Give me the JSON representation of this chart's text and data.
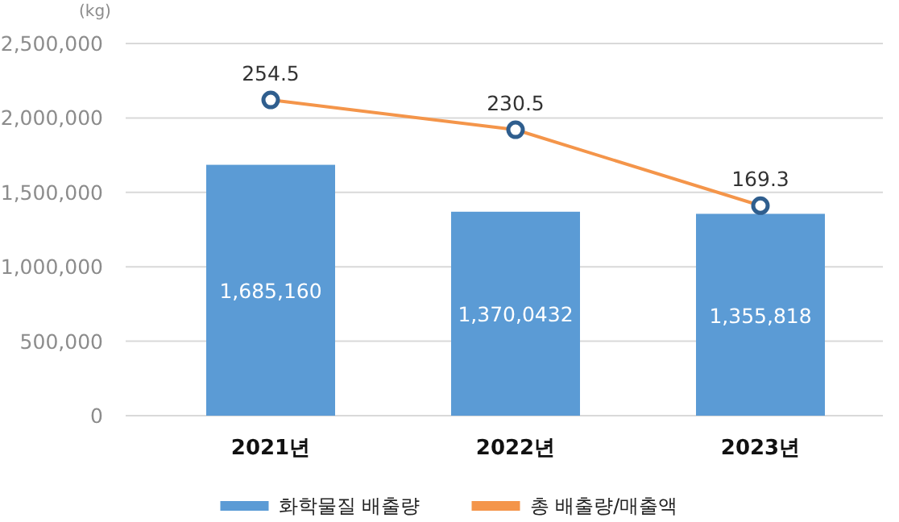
{
  "chart_data": {
    "type": "bar",
    "ylabel": "(kg)",
    "categories": [
      "2021년",
      "2022년",
      "2023년"
    ],
    "ylim": [
      0,
      2500000
    ],
    "yticks": [
      {
        "value": 0,
        "label": "0"
      },
      {
        "value": 500000,
        "label": "500,000"
      },
      {
        "value": 1000000,
        "label": "1,000,000"
      },
      {
        "value": 1500000,
        "label": "1,500,000"
      },
      {
        "value": 2000000,
        "label": "2,000,000"
      },
      {
        "value": 2500000,
        "label": "2,500,000"
      }
    ],
    "y2lim": [
      0,
      300
    ],
    "grid": "y",
    "legend": "bottom",
    "marker": "circle",
    "series": [
      {
        "name": "화학물질 배출량",
        "color": "#5b9bd5",
        "values": [
          1685160,
          1370000,
          1355818
        ],
        "value_labels": [
          "1,685,160",
          "1,370,0432",
          "1,355,818"
        ]
      },
      {
        "name": "총 배출량/매출액",
        "type": "line",
        "axis": "y2",
        "color": "#f4954a",
        "values": [
          254.5,
          230.5,
          169.3
        ],
        "value_labels": [
          "254.5",
          "230.5",
          "169.3"
        ]
      }
    ]
  }
}
